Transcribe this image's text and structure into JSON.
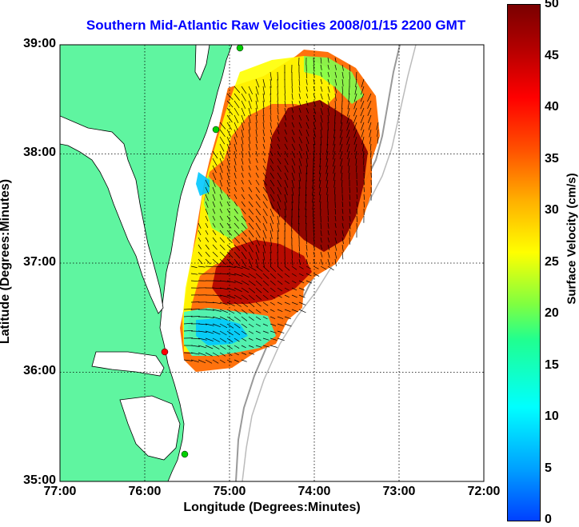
{
  "title": "Southern Mid-Atlantic Raw Velocities 2008/01/15 2200 GMT",
  "xlabel": "Longitude (Degrees:Minutes)",
  "ylabel": "Latitude (Degrees:Minutes)",
  "x_ticks": [
    "77:00",
    "76:00",
    "75:00",
    "74:00",
    "73:00",
    "72:00"
  ],
  "y_ticks": [
    "39:00",
    "38:00",
    "37:00",
    "36:00",
    "35:00"
  ],
  "colorbar": {
    "label": "Surface Velocity (cm/s)",
    "ticks": [
      "50",
      "45",
      "40",
      "35",
      "30",
      "25",
      "20",
      "15",
      "10",
      "5",
      "0"
    ]
  },
  "colors": {
    "land": "#5ff5a0",
    "water": "#ffffff",
    "title": "#0000ff",
    "stations": "#00d000",
    "station_red": "#ff0000"
  }
}
